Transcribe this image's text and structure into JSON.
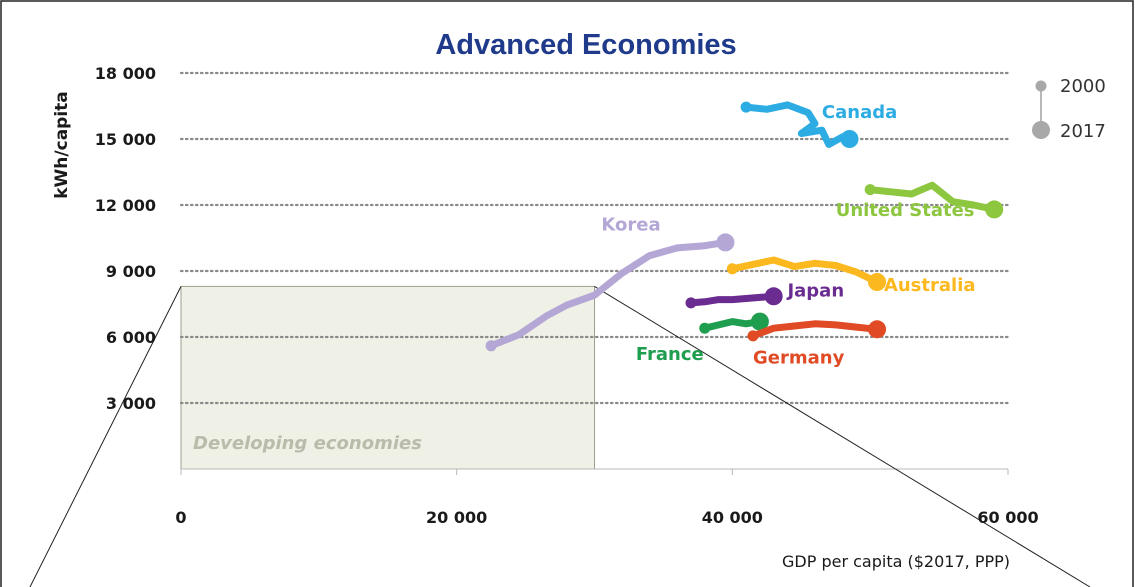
{
  "chart_data": {
    "type": "line",
    "title": "Advanced Economies",
    "xlabel": "GDP per capita ($2017, PPP)",
    "ylabel": "kWh/capita",
    "xlim": [
      0,
      60000
    ],
    "ylim": [
      0,
      18000
    ],
    "x_ticks": [
      0,
      20000,
      40000,
      60000
    ],
    "x_tick_labels": [
      "0",
      "20 000",
      "40 000",
      "60 000"
    ],
    "y_ticks": [
      3000,
      6000,
      9000,
      12000,
      15000,
      18000
    ],
    "y_tick_labels": [
      "3 000",
      "6 000",
      "9 000",
      "12 000",
      "15 000",
      "18 000"
    ],
    "grid": "horizontal dotted",
    "legend": {
      "placement": "top-right",
      "start_label": "2000",
      "end_label": "2017"
    },
    "region": {
      "label": "Developing economies",
      "x_range": [
        0,
        30000
      ],
      "y_range": [
        0,
        8300
      ],
      "color": "#eff0e6"
    },
    "series": [
      {
        "name": "Canada",
        "color": "#2cace2",
        "label_pos": [
          46500,
          15950
        ],
        "points": [
          [
            41000,
            16450
          ],
          [
            42500,
            16350
          ],
          [
            44000,
            16550
          ],
          [
            45500,
            16200
          ],
          [
            46000,
            15700
          ],
          [
            45000,
            15250
          ],
          [
            46500,
            15400
          ],
          [
            47000,
            14750
          ],
          [
            48000,
            15100
          ],
          [
            48500,
            15000
          ]
        ]
      },
      {
        "name": "United States",
        "color": "#8dc63f",
        "label_pos": [
          47500,
          11500
        ],
        "points": [
          [
            50000,
            12700
          ],
          [
            51500,
            12600
          ],
          [
            53000,
            12500
          ],
          [
            54500,
            12900
          ],
          [
            56000,
            12150
          ],
          [
            57500,
            12000
          ],
          [
            59000,
            11800
          ]
        ]
      },
      {
        "name": "Korea",
        "color": "#b4a7d6",
        "label_pos": [
          30500,
          10850
        ],
        "points": [
          [
            22500,
            5600
          ],
          [
            24500,
            6100
          ],
          [
            26500,
            6950
          ],
          [
            28000,
            7450
          ],
          [
            30000,
            7900
          ],
          [
            32000,
            8900
          ],
          [
            34000,
            9700
          ],
          [
            36000,
            10050
          ],
          [
            38000,
            10150
          ],
          [
            39500,
            10300
          ]
        ]
      },
      {
        "name": "Australia",
        "color": "#fbb81f",
        "label_pos": [
          51000,
          8100
        ],
        "points": [
          [
            40000,
            9100
          ],
          [
            41500,
            9300
          ],
          [
            43000,
            9500
          ],
          [
            44500,
            9200
          ],
          [
            46000,
            9350
          ],
          [
            47500,
            9250
          ],
          [
            49000,
            8950
          ],
          [
            50500,
            8500
          ]
        ]
      },
      {
        "name": "Japan",
        "color": "#6b2c91",
        "label_pos": [
          44000,
          7850
        ],
        "points": [
          [
            37000,
            7550
          ],
          [
            38000,
            7600
          ],
          [
            39000,
            7700
          ],
          [
            40000,
            7700
          ],
          [
            41000,
            7750
          ],
          [
            42000,
            7800
          ],
          [
            43000,
            7850
          ]
        ]
      },
      {
        "name": "France",
        "color": "#1e9e4e",
        "label_pos": [
          33000,
          4950
        ],
        "points": [
          [
            38000,
            6400
          ],
          [
            39000,
            6550
          ],
          [
            40000,
            6700
          ],
          [
            41000,
            6600
          ],
          [
            42000,
            6700
          ]
        ]
      },
      {
        "name": "Germany",
        "color": "#e04a24",
        "label_pos": [
          41500,
          4800
        ],
        "points": [
          [
            41500,
            6050
          ],
          [
            43000,
            6400
          ],
          [
            44500,
            6500
          ],
          [
            46000,
            6600
          ],
          [
            47500,
            6550
          ],
          [
            49000,
            6450
          ],
          [
            50500,
            6350
          ]
        ]
      }
    ]
  }
}
